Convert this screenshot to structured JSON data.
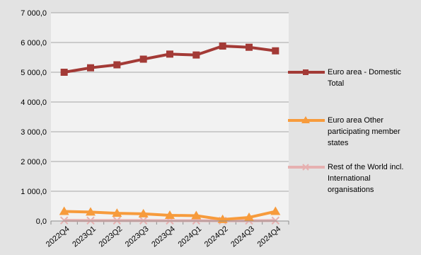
{
  "chart_data": {
    "type": "line",
    "categories": [
      "2022Q4",
      "2023Q1",
      "2023Q2",
      "2023Q3",
      "2023Q4",
      "2024Q1",
      "2024Q2",
      "2024Q3",
      "2024Q4"
    ],
    "ylim": [
      0,
      7000
    ],
    "yticks": [
      "0,0",
      "1 000,0",
      "2 000,0",
      "3 000,0",
      "4 000,0",
      "5 000,0",
      "6 000,0",
      "7 000,0"
    ],
    "grid": true,
    "legend_position": "right",
    "series": [
      {
        "name": "Euro area - Domestic Total",
        "color": "#a33a36",
        "marker": "square",
        "values": [
          5000,
          5150,
          5250,
          5440,
          5610,
          5580,
          5880,
          5840,
          5720
        ]
      },
      {
        "name": "Euro area Other participating member states",
        "color": "#f79b3c",
        "marker": "triangle",
        "values": [
          320,
          300,
          260,
          240,
          190,
          180,
          50,
          120,
          320
        ]
      },
      {
        "name": "Rest of the World incl. International organisations",
        "color": "#e6b0b0",
        "marker": "x",
        "values": [
          20,
          15,
          15,
          15,
          12,
          12,
          10,
          10,
          15
        ]
      }
    ]
  }
}
